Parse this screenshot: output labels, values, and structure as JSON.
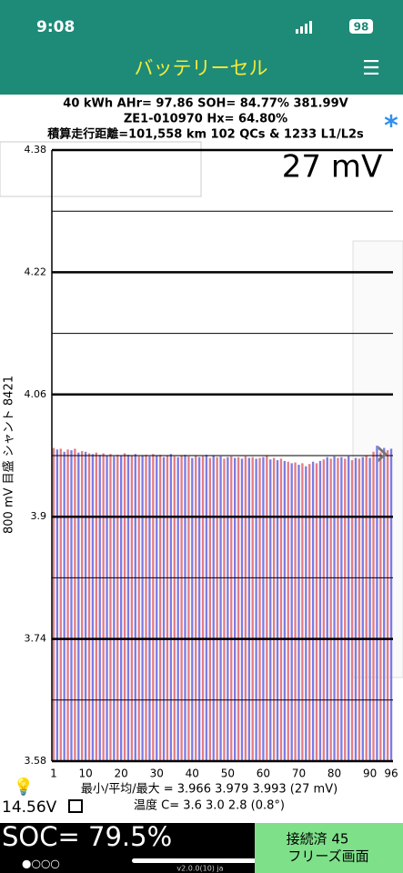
{
  "status_bar": {
    "time": "9:08",
    "battery": "98"
  },
  "header": {
    "title": "バッテリーセル",
    "menu": "☰"
  },
  "info": [
    "40 kWh  AHr= 97.86  SOH= 84.77%   381.99V",
    "ZE1-010970   Hx= 64.80%",
    "積算走行距離=101,558 km 102 QCs & 1233 L1/L2s"
  ],
  "star": "*",
  "chart_data": {
    "type": "bar",
    "annotation": "27 mV",
    "ylabel": "800 mV 目盛  シャント 8421",
    "categories": [
      "1",
      null,
      null,
      null,
      null,
      null,
      null,
      null,
      null,
      "10",
      null,
      null,
      null,
      null,
      null,
      null,
      null,
      null,
      null,
      "20",
      null,
      null,
      null,
      null,
      null,
      null,
      null,
      null,
      null,
      "30",
      null,
      null,
      null,
      null,
      null,
      null,
      null,
      null,
      null,
      "40",
      null,
      null,
      null,
      null,
      null,
      null,
      null,
      null,
      null,
      "50",
      null,
      null,
      null,
      null,
      null,
      null,
      null,
      null,
      null,
      "60",
      null,
      null,
      null,
      null,
      null,
      null,
      null,
      null,
      null,
      "70",
      null,
      null,
      null,
      null,
      null,
      null,
      null,
      null,
      null,
      "80",
      null,
      null,
      null,
      null,
      null,
      null,
      null,
      null,
      null,
      "90",
      null,
      null,
      null,
      null,
      null,
      "96"
    ],
    "values": [
      3.99,
      3.988,
      3.989,
      3.985,
      3.988,
      3.987,
      3.989,
      3.984,
      3.986,
      3.985,
      3.983,
      3.982,
      3.984,
      3.981,
      3.983,
      3.98,
      3.982,
      3.979,
      3.981,
      3.98,
      3.983,
      3.981,
      3.98,
      3.982,
      3.979,
      3.98,
      3.981,
      3.979,
      3.982,
      3.98,
      3.981,
      3.978,
      3.98,
      3.982,
      3.979,
      3.978,
      3.98,
      3.981,
      3.979,
      3.977,
      3.98,
      3.978,
      3.979,
      3.981,
      3.977,
      3.98,
      3.978,
      3.979,
      3.976,
      3.978,
      3.979,
      3.977,
      3.978,
      3.976,
      3.979,
      3.977,
      3.978,
      3.976,
      3.977,
      3.978,
      3.98,
      3.975,
      3.977,
      3.974,
      3.976,
      3.973,
      3.972,
      3.97,
      3.971,
      3.968,
      3.97,
      3.966,
      3.969,
      3.972,
      3.97,
      3.973,
      3.975,
      3.978,
      3.976,
      3.979,
      3.977,
      3.978,
      3.976,
      3.979,
      3.974,
      3.977,
      3.976,
      3.978,
      3.98,
      3.977,
      3.985,
      3.993,
      3.984,
      3.99,
      3.987,
      3.989
    ],
    "bar_colors": [
      "#e47c84",
      "#7c7ce4"
    ],
    "ylim": [
      3.58,
      4.38
    ],
    "yticks": [
      3.58,
      3.74,
      3.9,
      4.06,
      4.22,
      4.38
    ],
    "minor_yticks": [
      3.66,
      3.82,
      3.98,
      4.14,
      4.3
    ],
    "grid": true
  },
  "footer": {
    "stats": "最小/平均/最大 = 3.966 3.979 3.993  (27 mV)",
    "temps": "温度 C= 3.6  3.0  2.8  (0.8°)",
    "voltage": "14.56V",
    "soc": "SOC= 79.5%",
    "dots": "●○○○",
    "version": "v2.0.0(10) ja",
    "connected": "接続済 45",
    "freeze": "フリーズ画面"
  }
}
